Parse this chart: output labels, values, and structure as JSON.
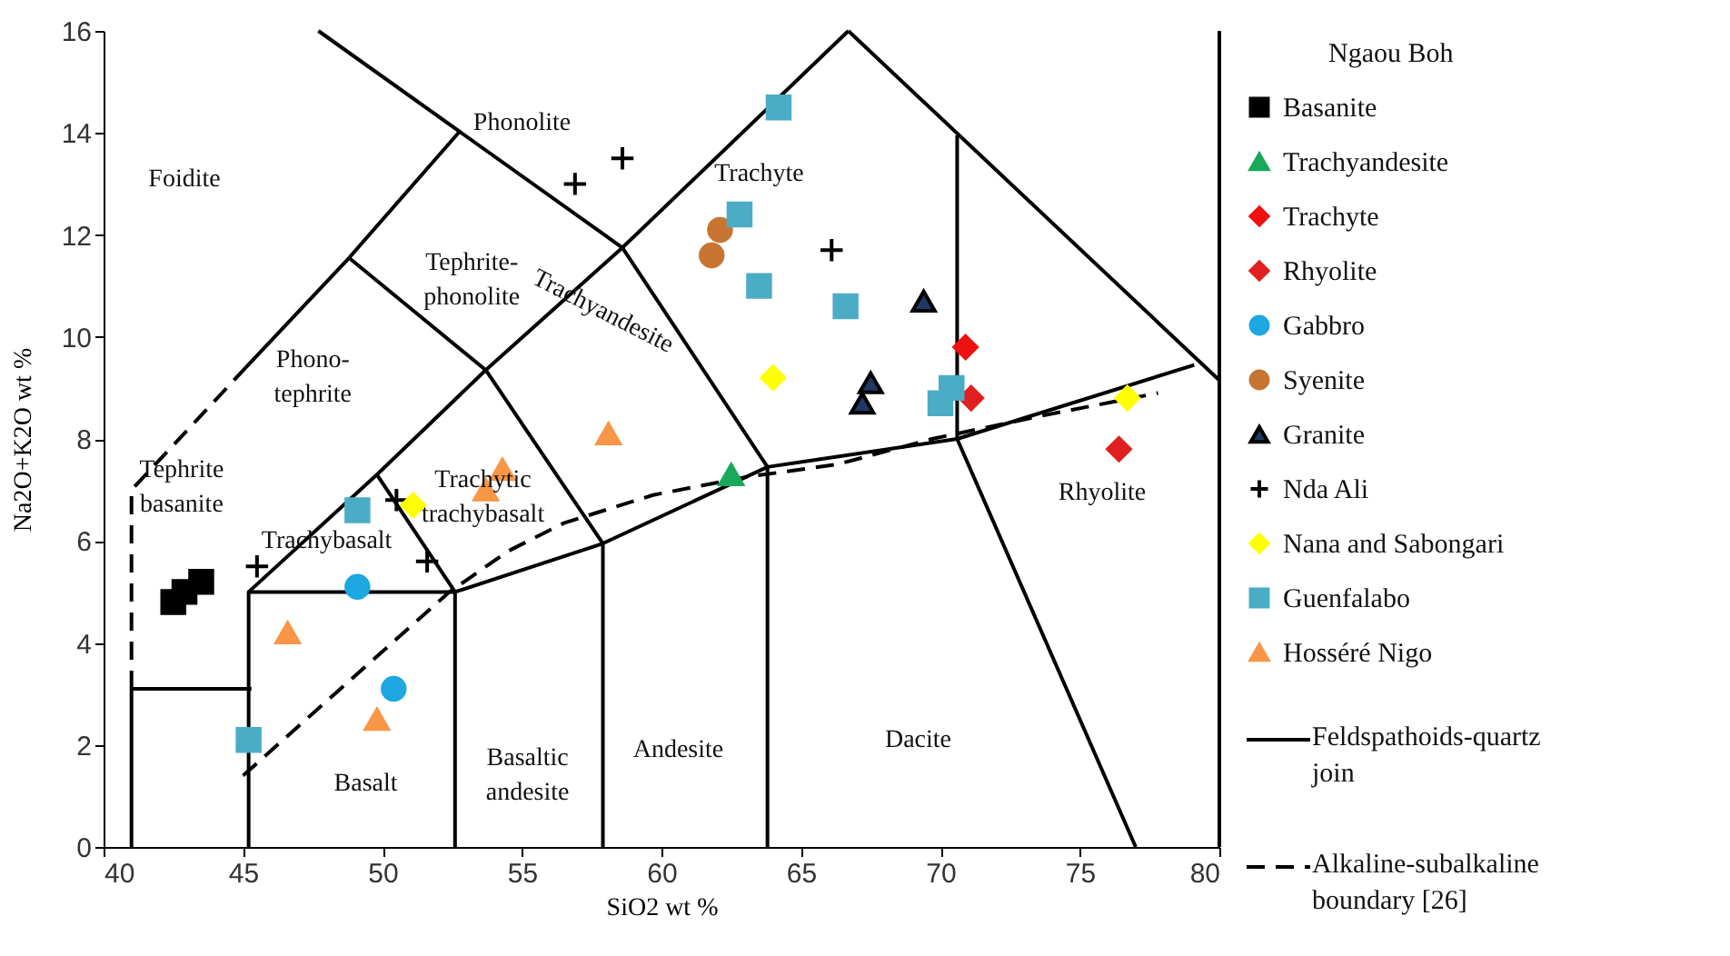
{
  "chart_data": {
    "type": "scatter",
    "xlabel": "SiO2 wt %",
    "ylabel": "Na2O+K2O wt %",
    "legend_title": "Ngaou Boh",
    "legend": "right",
    "grid": false,
    "xlim": [
      40,
      80
    ],
    "xticks": [
      40,
      45,
      50,
      55,
      60,
      65,
      70,
      75,
      80
    ],
    "ylim": [
      0,
      16
    ],
    "yticks": [
      0,
      2,
      4,
      6,
      8,
      10,
      12,
      14,
      16
    ],
    "series": [
      {
        "name": "Basanite",
        "marker": "square",
        "color": "#000000",
        "x": [
          42.5,
          42.9,
          43.5
        ],
        "values": [
          4.8,
          5.0,
          5.2
        ]
      },
      {
        "name": "Trachyandesite",
        "marker": "triangle",
        "color": "#1aa85a",
        "x": [
          62.5
        ],
        "values": [
          7.3
        ]
      },
      {
        "name": "Trachyte",
        "marker": "diamond",
        "color": "#ee1111",
        "x": [
          70.9
        ],
        "values": [
          9.8
        ]
      },
      {
        "name": "Rhyolite",
        "marker": "diamond",
        "color": "#e02020",
        "x": [
          71.1,
          76.4
        ],
        "values": [
          8.8,
          7.8
        ]
      },
      {
        "name": "Gabbro",
        "marker": "circle",
        "color": "#1ea7e1",
        "x": [
          49.1,
          50.4
        ],
        "values": [
          5.1,
          3.1
        ]
      },
      {
        "name": "Syenite",
        "marker": "circle",
        "color": "#c87533",
        "x": [
          62.1,
          61.8
        ],
        "values": [
          12.1,
          11.6
        ]
      },
      {
        "name": "Granite",
        "marker": "triangle",
        "color": "#1f3864",
        "x": [
          69.4,
          67.5,
          67.2
        ],
        "values": [
          10.7,
          9.1,
          8.7
        ]
      },
      {
        "name": "Nda Ali",
        "marker": "cross",
        "color": "#000000",
        "x": [
          56.9,
          58.6,
          66.1,
          45.5,
          50.5,
          51.6
        ],
        "values": [
          13.0,
          13.5,
          11.7,
          5.5,
          6.8,
          5.6
        ]
      },
      {
        "name": "Nana and Sabongari",
        "marker": "diamond",
        "color": "#ffff00",
        "x": [
          51.1,
          64.0,
          76.7
        ],
        "values": [
          6.7,
          9.2,
          8.8
        ]
      },
      {
        "name": "Guenfalabo",
        "marker": "square",
        "color": "#4bacc6",
        "x": [
          64.2,
          62.8,
          63.5,
          66.6,
          49.1,
          45.2,
          70.4,
          70.0
        ],
        "values": [
          14.5,
          12.4,
          11.0,
          10.6,
          6.6,
          2.1,
          9.0,
          8.7
        ]
      },
      {
        "name": "Hosséré Nigo",
        "marker": "triangle",
        "color": "#f79646",
        "x": [
          46.6,
          49.8,
          58.1,
          54.3,
          53.7
        ],
        "values": [
          4.2,
          2.5,
          8.1,
          7.4,
          7.0
        ]
      },
      {
        "name": "Feldspathoids-quartz join",
        "type": "line",
        "line_style": "solid",
        "color": "#000000",
        "x": [
          66.7,
          80
        ],
        "values": [
          16,
          9.15
        ]
      },
      {
        "name": "Alkaline-subalkaline boundary [26]",
        "type": "line",
        "line_style": "dashed",
        "color": "#000000",
        "x": [
          45.0,
          52.4,
          54.5,
          56.5,
          59.7,
          63.0,
          66.3,
          69.7,
          73.6,
          77.8
        ],
        "values": [
          1.4,
          5.0,
          5.8,
          6.35,
          6.9,
          7.25,
          7.5,
          8.0,
          8.45,
          8.9
        ]
      },
      {
        "type": "line",
        "line_style": "solid",
        "color": "#000000",
        "x": [
          41,
          41,
          45.3
        ],
        "values": [
          0,
          3.1,
          3.1
        ]
      },
      {
        "type": "line",
        "line_style": "solid",
        "color": "#000000",
        "x": [
          45.2,
          45.2,
          52.6,
          52.6
        ],
        "values": [
          0,
          5,
          5,
          0
        ]
      },
      {
        "type": "line",
        "line_style": "dashed",
        "color": "#000000",
        "x": [
          41,
          41,
          45.1
        ],
        "values": [
          3.1,
          7.0,
          9.4
        ]
      },
      {
        "type": "line",
        "line_style": "solid",
        "color": "#000000",
        "x": [
          45.2,
          49.8,
          53.7,
          58.6,
          63.8,
          70.6,
          79.1
        ],
        "values": [
          5,
          7.3,
          9.35,
          11.75,
          7.45,
          8.0,
          9.45
        ]
      },
      {
        "type": "line",
        "line_style": "solid",
        "color": "#000000",
        "x": [
          45.1,
          48.8,
          52.8
        ],
        "values": [
          9.4,
          11.55,
          14.05
        ]
      },
      {
        "type": "line",
        "line_style": "solid",
        "color": "#000000",
        "x": [
          47.7,
          58.6,
          66.7
        ],
        "values": [
          16,
          11.75,
          16
        ]
      },
      {
        "type": "line",
        "line_style": "solid",
        "color": "#000000",
        "x": [
          48.8,
          53.7,
          57.9,
          57.9
        ],
        "values": [
          11.55,
          9.35,
          5.95,
          0
        ]
      },
      {
        "type": "line",
        "line_style": "solid",
        "color": "#000000",
        "x": [
          49.8,
          52.6
        ],
        "values": [
          7.3,
          5.0
        ]
      },
      {
        "type": "line",
        "line_style": "solid",
        "color": "#000000",
        "x": [
          52.6,
          57.9,
          63.8,
          63.8
        ],
        "values": [
          5,
          5.95,
          7.45,
          0
        ]
      },
      {
        "type": "line",
        "line_style": "solid",
        "color": "#000000",
        "x": [
          70.6,
          70.6,
          77.0
        ],
        "values": [
          13.95,
          8.0,
          0
        ]
      }
    ],
    "annotations": [
      "Phonolite",
      "Foidite",
      "Trachyte",
      "Tephrite-\nphonolite",
      "Phono-\ntephrite",
      "Trachyandesite",
      "Tephrite\nbasanite",
      "Trachytic\ntrachybasalt",
      "Trachybasalt",
      "Basalt",
      "Basaltic\nandesite",
      "Andesite",
      "Dacite",
      "Rhyolite"
    ]
  }
}
